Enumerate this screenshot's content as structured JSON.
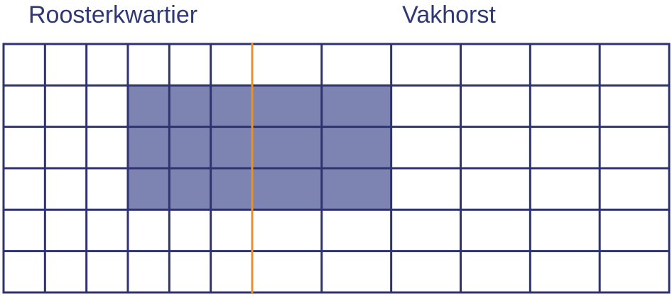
{
  "labels": {
    "left": "Roosterkwartier",
    "right": "Vakhorst"
  }
}
